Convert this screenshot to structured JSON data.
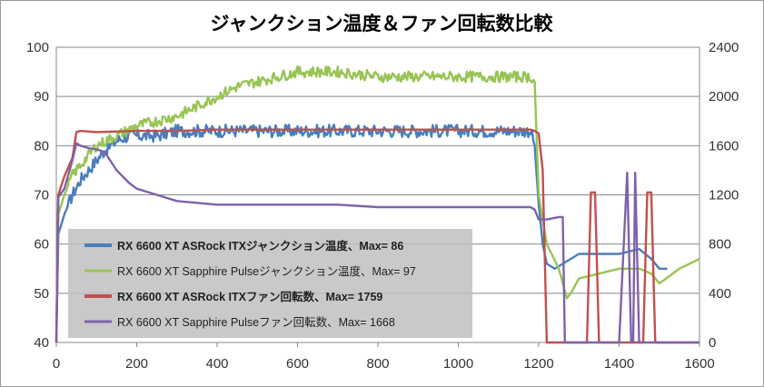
{
  "chart_data": {
    "type": "line",
    "title": "ジャンクション温度＆ファン回転数比較",
    "xlim": [
      0,
      1600
    ],
    "x_ticks": [
      "0",
      "200",
      "400",
      "600",
      "800",
      "1000",
      "1200",
      "1400",
      "1600"
    ],
    "y_left_lim": [
      40,
      100
    ],
    "y_left_ticks": [
      "40",
      "50",
      "60",
      "70",
      "80",
      "90",
      "100"
    ],
    "y_right_lim": [
      0,
      2400
    ],
    "y_right_ticks": [
      "0",
      "400",
      "800",
      "1200",
      "1600",
      "2000",
      "2400"
    ],
    "grid": true,
    "legend_position": "bottom-left",
    "series": [
      {
        "name": "RX 6600 XT ASRock ITXジャンクション温度、Max= 86",
        "axis": "left",
        "color": "#4a7ebb",
        "bold": true,
        "x": [
          0,
          5,
          20,
          40,
          60,
          80,
          100,
          120,
          150,
          180,
          200,
          250,
          300,
          400,
          500,
          600,
          700,
          800,
          900,
          1000,
          1100,
          1180,
          1190,
          1200,
          1210,
          1220,
          1240,
          1260,
          1280,
          1300,
          1350,
          1400,
          1450,
          1480,
          1500,
          1520
        ],
        "y": [
          40,
          62,
          66,
          70,
          73,
          75,
          77,
          79,
          81,
          82,
          82,
          82,
          83,
          83,
          83,
          83,
          83,
          83,
          83,
          83,
          83,
          83,
          80,
          68,
          60,
          56,
          55,
          56,
          57,
          58,
          58,
          58,
          59,
          57,
          55,
          55
        ]
      },
      {
        "name": "RX 6600 XT Sapphire Pulseジャンクション温度、Max= 97",
        "axis": "left",
        "color": "#98c454",
        "bold": false,
        "x": [
          0,
          5,
          20,
          40,
          60,
          80,
          100,
          150,
          200,
          250,
          300,
          350,
          400,
          450,
          500,
          550,
          600,
          650,
          700,
          800,
          900,
          1000,
          1100,
          1180,
          1190,
          1200,
          1220,
          1250,
          1270,
          1280,
          1300,
          1350,
          1400,
          1450,
          1480,
          1500,
          1550,
          1600
        ],
        "y": [
          40,
          66,
          70,
          74,
          76,
          78,
          80,
          82,
          84,
          85,
          86,
          88,
          90,
          92,
          93,
          94,
          95,
          95,
          95,
          94,
          94,
          94,
          94,
          94,
          93,
          70,
          60,
          55,
          49,
          50,
          53,
          54,
          55,
          55,
          54,
          52,
          55,
          57
        ]
      },
      {
        "name": "RX 6600 XT ASRock ITXファン回転数、Max= 1759",
        "axis": "right",
        "color": "#c0504d",
        "bold": true,
        "x": [
          0,
          5,
          20,
          40,
          50,
          60,
          100,
          200,
          300,
          400,
          500,
          600,
          700,
          800,
          900,
          1000,
          1100,
          1180,
          1190,
          1200,
          1210,
          1220,
          1300,
          1320,
          1330,
          1340,
          1350,
          1360,
          1400,
          1450,
          1460,
          1470,
          1480,
          1490,
          1500,
          1600
        ],
        "y": [
          0,
          1200,
          1350,
          1500,
          1710,
          1720,
          1710,
          1720,
          1720,
          1730,
          1730,
          1730,
          1730,
          1730,
          1730,
          1730,
          1730,
          1730,
          1720,
          1700,
          1400,
          0,
          0,
          0,
          1220,
          1220,
          0,
          0,
          0,
          0,
          0,
          1220,
          1220,
          0,
          0,
          0
        ]
      },
      {
        "name": "RX 6600 XT Sapphire Pulseファン回転数、Max= 1668",
        "axis": "right",
        "color": "#7f62a8",
        "bold": false,
        "x": [
          0,
          5,
          20,
          40,
          50,
          60,
          80,
          100,
          120,
          150,
          180,
          200,
          250,
          300,
          400,
          500,
          600,
          700,
          800,
          900,
          1000,
          1100,
          1180,
          1190,
          1200,
          1220,
          1250,
          1260,
          1265,
          1270,
          1280,
          1300,
          1400,
          1420,
          1430,
          1435,
          1440,
          1450,
          1460,
          1470,
          1600
        ],
        "y": [
          0,
          1180,
          1250,
          1480,
          1620,
          1600,
          1580,
          1570,
          1550,
          1400,
          1300,
          1250,
          1200,
          1150,
          1120,
          1120,
          1120,
          1120,
          1100,
          1100,
          1100,
          1100,
          1100,
          1080,
          1000,
          1000,
          1020,
          1020,
          0,
          0,
          0,
          0,
          0,
          1380,
          0,
          0,
          1380,
          0,
          0,
          0,
          0
        ]
      }
    ]
  }
}
